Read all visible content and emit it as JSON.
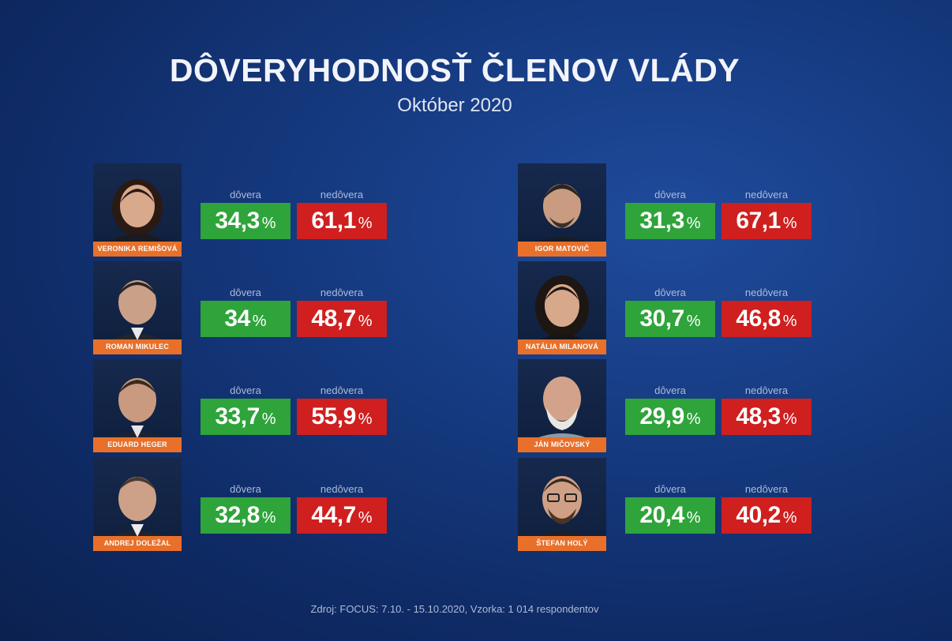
{
  "title": "DÔVERYHODNOSŤ ČLENOV VLÁDY",
  "subtitle": "Október 2020",
  "labels": {
    "trust": "dôvera",
    "distrust": "nedôvera",
    "percent": "%"
  },
  "colors": {
    "trust": "#2ea43a",
    "distrust": "#cf1f1f",
    "name_tag": "#e8702a"
  },
  "members": [
    {
      "name": "VERONIKA REMIŠOVÁ",
      "trust": "34,3",
      "distrust": "61,1"
    },
    {
      "name": "ROMAN MIKULEC",
      "trust": "34",
      "distrust": "48,7"
    },
    {
      "name": "EDUARD HEGER",
      "trust": "33,7",
      "distrust": "55,9"
    },
    {
      "name": "ANDREJ DOLEŽAL",
      "trust": "32,8",
      "distrust": "44,7"
    },
    {
      "name": "IGOR MATOVIČ",
      "trust": "31,3",
      "distrust": "67,1"
    },
    {
      "name": "NATÁLIA MILANOVÁ",
      "trust": "30,7",
      "distrust": "46,8"
    },
    {
      "name": "JÁN MIČOVSKÝ",
      "trust": "29,9",
      "distrust": "48,3"
    },
    {
      "name": "ŠTEFAN HOLÝ",
      "trust": "20,4",
      "distrust": "40,2"
    }
  ],
  "footer": "Zdroj: FOCUS: 7.10. - 15.10.2020, Vzorka: 1 014 respondentov"
}
